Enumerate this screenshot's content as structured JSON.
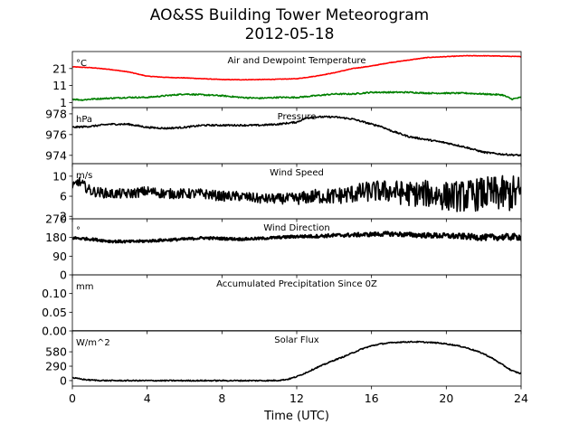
{
  "figure": {
    "title": "AO&SS Building Tower Meteorogram",
    "subtitle": "2012-05-18",
    "xlabel": "Time (UTC)"
  },
  "chart_data": {
    "type": "line",
    "x_range": [
      0,
      24
    ],
    "x_ticks": [
      0,
      4,
      8,
      12,
      16,
      20,
      24
    ],
    "x_unit": "hours UTC",
    "panels": [
      {
        "key": "temperature",
        "title": "Air and Dewpoint Temperature",
        "unit": "°C",
        "ylim": [
          -2,
          31
        ],
        "yticks": [
          1,
          11,
          21
        ],
        "ytick_labels": [
          "1",
          "11",
          "21"
        ],
        "series": [
          {
            "color": "#ff0000",
            "noise": 0.15,
            "x": [
              0,
              1,
              2,
              3,
              4,
              5,
              6,
              7,
              8,
              9,
              10,
              11,
              12,
              13,
              14,
              15,
              16,
              17,
              18,
              19,
              20,
              21,
              22,
              23,
              24
            ],
            "y": [
              22,
              21.5,
              20.5,
              19,
              16.5,
              15.8,
              15.5,
              15,
              14.5,
              14.4,
              14.5,
              14.7,
              15,
              16.5,
              18.5,
              21,
              22.5,
              24.5,
              26,
              27.5,
              28,
              28.5,
              28.5,
              28.3,
              28
            ]
          },
          {
            "color": "#008000",
            "noise": 0.4,
            "x": [
              0,
              0.5,
              1,
              2,
              3,
              4,
              5,
              6,
              7,
              8,
              9,
              10,
              11,
              12,
              13,
              14,
              15,
              16,
              17,
              18,
              19,
              20,
              21,
              22,
              23,
              23.5,
              24
            ],
            "y": [
              3,
              2.5,
              3,
              3.5,
              4,
              4,
              5,
              6,
              5.5,
              5,
              4,
              3.5,
              4,
              4,
              5,
              6,
              6,
              7,
              7,
              7,
              6.5,
              6.5,
              6.5,
              6,
              5.5,
              3,
              4
            ]
          }
        ]
      },
      {
        "key": "pressure",
        "title": "Pressure",
        "unit": "hPa",
        "ylim": [
          973.2,
          978.6
        ],
        "yticks": [
          974,
          976,
          978
        ],
        "ytick_labels": [
          "974",
          "976",
          "978"
        ],
        "series": [
          {
            "color": "#000000",
            "noise": 0.08,
            "x": [
              0,
              1,
              2,
              3,
              4,
              5,
              6,
              7,
              8,
              9,
              10,
              11,
              12,
              12.5,
              13,
              14,
              15,
              16,
              16.5,
              17,
              18,
              19,
              20,
              21,
              22,
              23,
              24
            ],
            "y": [
              976.7,
              976.8,
              977,
              977,
              976.7,
              976.6,
              976.7,
              976.9,
              976.9,
              976.9,
              976.9,
              977,
              977.2,
              977.6,
              977.7,
              977.7,
              977.5,
              977,
              976.8,
              976.4,
              975.8,
              975.5,
              975.2,
              974.8,
              974.3,
              974.1,
              974
            ]
          }
        ]
      },
      {
        "key": "wind_speed",
        "title": "Wind Speed",
        "unit": "m/s",
        "ylim": [
          1.5,
          12.5
        ],
        "yticks": [
          2,
          6,
          10
        ],
        "ytick_labels": [
          "2",
          "6",
          "10"
        ],
        "series": [
          {
            "color": "#000000",
            "noise": 1.0,
            "noise_ramp": 2.8,
            "x": [
              0,
              0.3,
              1,
              2,
              3,
              4,
              5,
              6,
              7,
              8,
              9,
              10,
              11,
              12,
              13,
              14,
              15,
              16,
              17,
              18,
              19,
              20,
              21,
              22,
              23,
              24
            ],
            "y": [
              7.5,
              9,
              7,
              6.5,
              6.5,
              7,
              6.5,
              6.5,
              6.5,
              6,
              6,
              5.5,
              5.5,
              5.5,
              6,
              6,
              6.5,
              7,
              7,
              6.5,
              6.5,
              6,
              6,
              6.5,
              6.5,
              6.5
            ]
          }
        ]
      },
      {
        "key": "wind_direction",
        "title": "Wind Direction",
        "unit": "°",
        "ylim": [
          0,
          270
        ],
        "yticks": [
          0,
          90,
          180,
          270
        ],
        "ytick_labels": [
          "0",
          "90",
          "180",
          "270"
        ],
        "series": [
          {
            "color": "#000000",
            "noise": 6,
            "noise_ramp": 10,
            "x": [
              0,
              1,
              2,
              3,
              4,
              5,
              6,
              7,
              8,
              9,
              10,
              11,
              12,
              13,
              14,
              15,
              16,
              17,
              18,
              19,
              20,
              21,
              22,
              23,
              24
            ],
            "y": [
              178,
              172,
              162,
              160,
              163,
              168,
              172,
              178,
              175,
              172,
              175,
              180,
              185,
              186,
              190,
              192,
              195,
              198,
              193,
              190,
              188,
              185,
              180,
              182,
              183
            ]
          }
        ]
      },
      {
        "key": "precipitation",
        "title": "Accumulated Precipitation Since 0Z",
        "unit": "mm",
        "ylim": [
          0,
          0.15
        ],
        "yticks": [
          0.0,
          0.05,
          0.1
        ],
        "ytick_labels": [
          "0.00",
          "0.05",
          "0.10"
        ],
        "series": [
          {
            "color": "#000000",
            "noise": 0,
            "x": [
              0,
              24
            ],
            "y": [
              0,
              0
            ]
          }
        ]
      },
      {
        "key": "solar",
        "title": "Solar Flux",
        "unit": "W/m^2",
        "ylim": [
          -110,
          1000
        ],
        "yticks": [
          0,
          290,
          580
        ],
        "ytick_labels": [
          "0",
          "290",
          "580"
        ],
        "series": [
          {
            "color": "#000000",
            "noise": 12,
            "x": [
              0,
              0.3,
              0.8,
              1.5,
              2,
              3,
              4,
              5,
              6,
              7,
              8,
              9,
              10,
              10.5,
              11,
              11.5,
              12,
              12.5,
              13,
              13.5,
              14,
              14.5,
              15,
              15.5,
              16,
              16.5,
              17,
              17.5,
              18,
              18.5,
              19,
              19.5,
              20,
              20.5,
              21,
              21.5,
              22,
              22.5,
              23,
              23.5,
              24
            ],
            "y": [
              60,
              40,
              15,
              3,
              0,
              0,
              0,
              0,
              0,
              0,
              0,
              0,
              0,
              0,
              5,
              25,
              80,
              160,
              250,
              330,
              410,
              480,
              560,
              640,
              700,
              740,
              760,
              775,
              780,
              780,
              770,
              760,
              740,
              710,
              670,
              610,
              540,
              440,
              320,
              200,
              140
            ]
          }
        ]
      }
    ]
  }
}
